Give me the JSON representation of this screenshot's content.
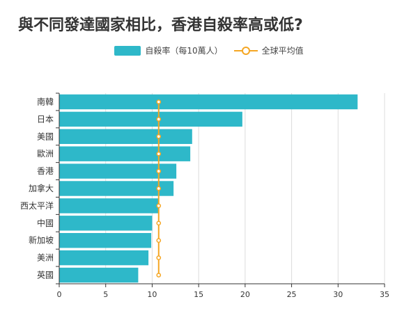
{
  "chart_data": {
    "type": "bar",
    "orientation": "horizontal",
    "title": "與不同發達國家相比，香港自殺率高或低?",
    "categories": [
      "南韓",
      "日本",
      "美國",
      "歐洲",
      "香港",
      "加拿大",
      "西太平洋",
      "中國",
      "新加坡",
      "美洲",
      "英國"
    ],
    "series": [
      {
        "name": "自殺率（每10萬人）",
        "type": "bar",
        "color": "#2eb8c9",
        "values": [
          32.1,
          19.7,
          14.3,
          14.1,
          12.6,
          12.3,
          10.7,
          10.0,
          9.9,
          9.6,
          8.5
        ]
      },
      {
        "name": "全球平均值",
        "type": "line",
        "color": "#f5a623",
        "values": [
          10.7,
          10.7,
          10.7,
          10.7,
          10.7,
          10.7,
          10.7,
          10.7,
          10.7,
          10.7,
          10.7
        ]
      }
    ],
    "xlim": [
      0,
      35
    ],
    "xticks": [
      0,
      5,
      10,
      15,
      20,
      25,
      30,
      35
    ],
    "xlabel": "",
    "ylabel": "",
    "grid": "vertical",
    "legend_position": "top-center"
  }
}
